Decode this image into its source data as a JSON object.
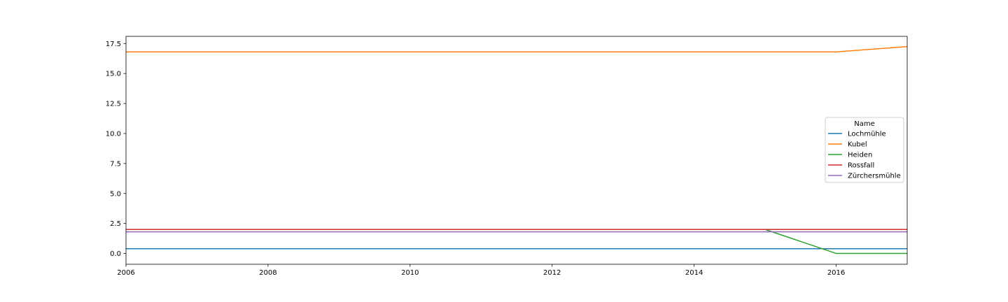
{
  "chart_data": {
    "type": "line",
    "title": "",
    "xlabel": "",
    "ylabel": "",
    "x": [
      2006,
      2007,
      2008,
      2009,
      2010,
      2011,
      2012,
      2013,
      2014,
      2015,
      2016,
      2017
    ],
    "xlim": [
      2006,
      2017
    ],
    "ylim": [
      -0.9,
      18.1
    ],
    "xticks": [
      2006,
      2008,
      2010,
      2012,
      2014,
      2016
    ],
    "yticks": [
      0.0,
      2.5,
      5.0,
      7.5,
      10.0,
      12.5,
      15.0,
      17.5
    ],
    "grid": false,
    "legend": {
      "title": "Name",
      "placement": "center-right"
    },
    "series": [
      {
        "name": "Lochmühle",
        "color": "#1f77b4",
        "values": [
          0.4,
          0.4,
          0.4,
          0.4,
          0.4,
          0.4,
          0.4,
          0.4,
          0.4,
          0.4,
          0.4,
          0.4
        ]
      },
      {
        "name": "Kubel",
        "color": "#ff7f0e",
        "values": [
          16.8,
          16.8,
          16.8,
          16.8,
          16.8,
          16.8,
          16.8,
          16.8,
          16.8,
          16.8,
          16.8,
          17.25
        ]
      },
      {
        "name": "Heiden",
        "color": "#2ca02c",
        "values": [
          2.0,
          2.0,
          2.0,
          2.0,
          2.0,
          2.0,
          2.0,
          2.0,
          2.0,
          2.0,
          0.0,
          0.0
        ]
      },
      {
        "name": "Rossfall",
        "color": "#d62728",
        "values": [
          2.0,
          2.0,
          2.0,
          2.0,
          2.0,
          2.0,
          2.0,
          2.0,
          2.0,
          2.0,
          2.0,
          2.0
        ]
      },
      {
        "name": "Zürchersmühle",
        "color": "#9467bd",
        "values": [
          1.8,
          1.8,
          1.8,
          1.8,
          1.8,
          1.8,
          1.8,
          1.8,
          1.8,
          1.8,
          1.8,
          1.8
        ]
      }
    ]
  }
}
